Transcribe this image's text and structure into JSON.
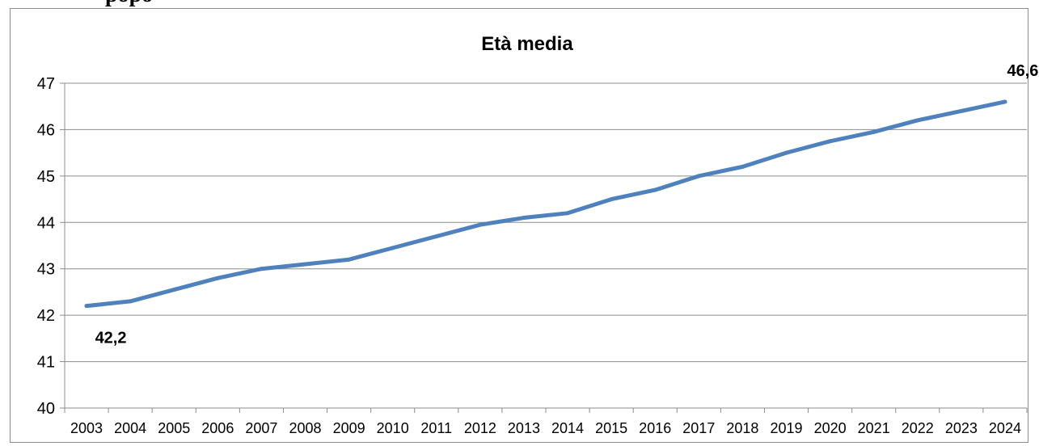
{
  "header": {
    "clipped_heading": "popo"
  },
  "chart_data": {
    "type": "line",
    "title": "Età media",
    "x": [
      "2003",
      "2004",
      "2005",
      "2006",
      "2007",
      "2008",
      "2009",
      "2010",
      "2011",
      "2012",
      "2013",
      "2014",
      "2015",
      "2016",
      "2017",
      "2018",
      "2019",
      "2020",
      "2021",
      "2022",
      "2023",
      "2024"
    ],
    "series": [
      {
        "values": [
          42.2,
          42.3,
          42.55,
          42.8,
          43.0,
          43.1,
          43.2,
          43.45,
          43.7,
          43.95,
          44.1,
          44.2,
          44.5,
          44.7,
          45.0,
          45.2,
          45.5,
          45.75,
          45.95,
          46.2,
          46.4,
          46.6
        ]
      }
    ],
    "ylim": [
      40,
      47
    ],
    "yticks": [
      "40",
      "41",
      "42",
      "43",
      "44",
      "45",
      "46",
      "47"
    ],
    "data_labels": [
      {
        "index": 0,
        "text": "42,2"
      },
      {
        "index": 21,
        "text": "46,6"
      }
    ],
    "grid": true,
    "legend": "none",
    "colors": {
      "line": "#4f81bd",
      "grid": "#8c8c8c",
      "axis": "#8c8c8c",
      "text": "#000000"
    }
  }
}
